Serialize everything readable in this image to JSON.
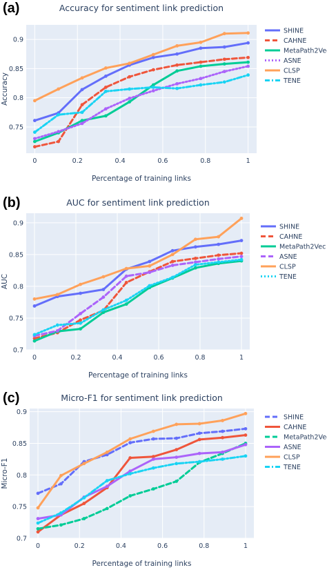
{
  "panels": [
    {
      "label": "(a)",
      "title": "Accuracy for sentiment link prediction",
      "xlabel": "Percentage of training links",
      "ylabel": "Accuracy",
      "xticks": [
        "0",
        "0.2",
        "0.4",
        "0.6",
        "0.8",
        "1"
      ],
      "yticks": [
        "0.75",
        "0.8",
        "0.85",
        "0.9"
      ],
      "legend": [
        "SHINE",
        "CAHNE",
        "MetaPath2Vec",
        "ASNE",
        "CLSP",
        "TENE"
      ]
    },
    {
      "label": "(b)",
      "title": "AUC for sentiment link prediction",
      "xlabel": "Percentage of training links",
      "ylabel": "AUC",
      "xticks": [
        "0",
        "0.2",
        "0.4",
        "0.6",
        "0.8",
        "1"
      ],
      "yticks": [
        "0.7",
        "0.75",
        "0.8",
        "0.85",
        "0.9"
      ],
      "legend": [
        "SHINE",
        "CAHNE",
        "MetaPath2Vec",
        "ASNE",
        "CLSP",
        "TENE"
      ]
    },
    {
      "label": "(c)",
      "title": "Micro-F1 for sentiment link prediction",
      "xlabel": "Percentage of training links",
      "ylabel": "Micro-F1",
      "xticks": [
        "0",
        "0.2",
        "0.4",
        "0.6",
        "0.8",
        "1"
      ],
      "yticks": [
        "0.7",
        "0.75",
        "0.8",
        "0.85",
        "0.9"
      ],
      "legend": [
        "SHINE",
        "CAHNE",
        "MetaPath2Vec",
        "ASNE",
        "CLSP",
        "TENE"
      ]
    }
  ],
  "chart_data": [
    {
      "type": "line",
      "title": "Accuracy for sentiment link prediction",
      "xlabel": "Percentage of training links",
      "ylabel": "Accuracy",
      "xlim": [
        -0.04,
        1.04
      ],
      "ylim": [
        0.705,
        0.925
      ],
      "grid": true,
      "legend_position": "right",
      "x": [
        0,
        0.111,
        0.222,
        0.333,
        0.444,
        0.556,
        0.667,
        0.778,
        0.889,
        1
      ],
      "series": [
        {
          "name": "SHINE",
          "color": "#636efa",
          "dash": "solid",
          "values": [
            0.761,
            0.774,
            0.814,
            0.837,
            0.856,
            0.869,
            0.875,
            0.885,
            0.887,
            0.894
          ]
        },
        {
          "name": "CAHNE",
          "color": "#ef553b",
          "dash": "dash",
          "values": [
            0.716,
            0.725,
            0.788,
            0.818,
            0.836,
            0.848,
            0.856,
            0.861,
            0.866,
            0.869
          ]
        },
        {
          "name": "MetaPath2Vec",
          "color": "#00cc96",
          "dash": "solid",
          "values": [
            0.725,
            0.74,
            0.761,
            0.769,
            0.793,
            0.822,
            0.846,
            0.854,
            0.858,
            0.861
          ]
        },
        {
          "name": "ASNE",
          "color": "#ab63fa",
          "dash": "dot",
          "values": [
            0.73,
            0.742,
            0.756,
            0.781,
            0.799,
            0.812,
            0.824,
            0.833,
            0.845,
            0.854
          ]
        },
        {
          "name": "CLSP",
          "color": "#ffa15a",
          "dash": "solid",
          "values": [
            0.795,
            0.815,
            0.834,
            0.851,
            0.859,
            0.874,
            0.889,
            0.895,
            0.91,
            0.911
          ]
        },
        {
          "name": "TENE",
          "color": "#19d3f3",
          "dash": "dashdot",
          "values": [
            0.741,
            0.771,
            0.775,
            0.811,
            0.815,
            0.818,
            0.816,
            0.822,
            0.827,
            0.839
          ]
        }
      ]
    },
    {
      "type": "line",
      "title": "AUC for sentiment link prediction",
      "xlabel": "Percentage of training links",
      "ylabel": "AUC",
      "xlim": [
        -0.04,
        1.04
      ],
      "ylim": [
        0.7,
        0.915
      ],
      "grid": true,
      "legend_position": "right",
      "x": [
        0,
        0.111,
        0.222,
        0.333,
        0.444,
        0.556,
        0.667,
        0.778,
        0.889,
        1
      ],
      "series": [
        {
          "name": "SHINE",
          "color": "#636efa",
          "dash": "solid",
          "values": [
            0.769,
            0.784,
            0.789,
            0.795,
            0.827,
            0.839,
            0.856,
            0.862,
            0.866,
            0.872
          ]
        },
        {
          "name": "CAHNE",
          "color": "#ef553b",
          "dash": "dash",
          "values": [
            0.718,
            0.727,
            0.747,
            0.762,
            0.806,
            0.823,
            0.839,
            0.844,
            0.849,
            0.852
          ]
        },
        {
          "name": "MetaPath2Vec",
          "color": "#00cc96",
          "dash": "solid",
          "values": [
            0.714,
            0.729,
            0.733,
            0.759,
            0.772,
            0.798,
            0.813,
            0.829,
            0.836,
            0.84
          ]
        },
        {
          "name": "ASNE",
          "color": "#ab63fa",
          "dash": "dash",
          "values": [
            0.722,
            0.73,
            0.757,
            0.783,
            0.816,
            0.822,
            0.833,
            0.838,
            0.843,
            0.847
          ]
        },
        {
          "name": "CLSP",
          "color": "#ffa15a",
          "dash": "solid",
          "values": [
            0.78,
            0.787,
            0.803,
            0.815,
            0.828,
            0.832,
            0.85,
            0.874,
            0.878,
            0.907
          ]
        },
        {
          "name": "TENE",
          "color": "#19d3f3",
          "dash": "dot",
          "values": [
            0.724,
            0.739,
            0.742,
            0.763,
            0.778,
            0.801,
            0.814,
            0.834,
            0.838,
            0.842
          ]
        }
      ]
    },
    {
      "type": "line",
      "title": "Micro-F1 for sentiment link prediction",
      "xlabel": "Percentage of training links",
      "ylabel": "Micro-F1",
      "xlim": [
        -0.04,
        1.04
      ],
      "ylim": [
        0.7,
        0.905
      ],
      "grid": true,
      "legend_position": "right",
      "x": [
        0,
        0.111,
        0.222,
        0.333,
        0.444,
        0.556,
        0.667,
        0.778,
        0.889,
        1
      ],
      "series": [
        {
          "name": "SHINE",
          "color": "#636efa",
          "dash": "dash",
          "values": [
            0.771,
            0.786,
            0.821,
            0.832,
            0.851,
            0.857,
            0.858,
            0.866,
            0.869,
            0.873
          ]
        },
        {
          "name": "CAHNE",
          "color": "#ef553b",
          "dash": "solid",
          "values": [
            0.71,
            0.737,
            0.755,
            0.78,
            0.827,
            0.829,
            0.84,
            0.856,
            0.859,
            0.863
          ]
        },
        {
          "name": "MetaPath2Vec",
          "color": "#00cc96",
          "dash": "dash",
          "values": [
            0.715,
            0.721,
            0.731,
            0.747,
            0.767,
            0.778,
            0.79,
            0.82,
            0.834,
            0.85
          ]
        },
        {
          "name": "ASNE",
          "color": "#ab63fa",
          "dash": "solid",
          "values": [
            0.731,
            0.737,
            0.765,
            0.782,
            0.806,
            0.825,
            0.828,
            0.834,
            0.836,
            0.848
          ]
        },
        {
          "name": "CLSP",
          "color": "#ffa15a",
          "dash": "solid",
          "values": [
            0.748,
            0.799,
            0.818,
            0.836,
            0.857,
            0.869,
            0.88,
            0.881,
            0.886,
            0.897
          ]
        },
        {
          "name": "TENE",
          "color": "#19d3f3",
          "dash": "dashdot",
          "values": [
            0.724,
            0.74,
            0.764,
            0.791,
            0.802,
            0.811,
            0.818,
            0.821,
            0.825,
            0.83
          ]
        }
      ]
    }
  ]
}
